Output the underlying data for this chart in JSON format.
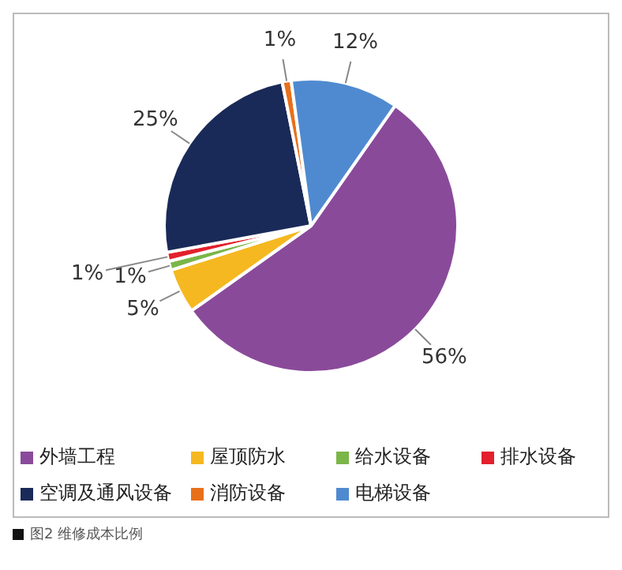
{
  "chart_data": {
    "type": "pie",
    "categories": [
      "外墙工程",
      "屋顶防水",
      "给水设备",
      "排水设备",
      "空调及通风设备",
      "消防设备",
      "电梯设备"
    ],
    "values": [
      56,
      5,
      1,
      1,
      25,
      1,
      12
    ],
    "value_labels": [
      "56%",
      "5%",
      "1%",
      "1%",
      "25%",
      "1%",
      "12%"
    ],
    "colors": [
      "#8a4a9a",
      "#f5b820",
      "#7ab648",
      "#e3202c",
      "#1a2a58",
      "#e8701a",
      "#4f8ad0"
    ],
    "legend": "bottom",
    "annotations": [
      "图2 维修成本比例"
    ]
  }
}
